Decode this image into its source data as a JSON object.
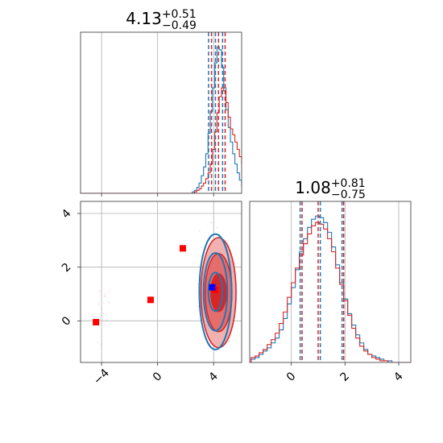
{
  "chart_data": [
    {
      "type": "histogram",
      "panel": "top-left",
      "title_value": "4.13",
      "title_plus": "+0.51",
      "title_minus": "−0.49",
      "xlim": [
        -5.5,
        6.0
      ],
      "x_ticks": [
        -4,
        0,
        4
      ],
      "grid": true,
      "quantile_lines": {
        "blue": [
          3.64,
          4.13,
          4.64
        ],
        "red": [
          3.85,
          4.35,
          4.82
        ]
      },
      "series": [
        {
          "name": "",
          "color": "#1f77b4",
          "bin_start": 2.0,
          "bin_width": 0.16,
          "values": [
            0,
            0,
            0,
            1,
            2,
            4,
            7,
            12,
            18,
            27,
            41,
            56,
            72,
            89,
            100,
            98,
            86,
            72,
            57,
            45,
            35,
            27,
            20,
            14,
            9,
            5,
            3,
            2,
            1,
            0,
            0,
            0,
            0,
            0,
            0,
            0
          ]
        },
        {
          "name": "",
          "color": "#d62728",
          "bin_start": 2.0,
          "bin_width": 0.16,
          "values": [
            0,
            0,
            0,
            0,
            1,
            2,
            3,
            5,
            7,
            10,
            14,
            20,
            30,
            42,
            55,
            66,
            72,
            70,
            62,
            52,
            44,
            40,
            35,
            30,
            25,
            20,
            15,
            10,
            6,
            4,
            2,
            1,
            0,
            0,
            0,
            0
          ]
        }
      ]
    },
    {
      "type": "scatter-contour",
      "panel": "bottom-left",
      "xlim": [
        -5.5,
        6.0
      ],
      "ylim": [
        -1.55,
        4.45
      ],
      "x_ticks": [
        -4,
        0,
        4
      ],
      "y_ticks": [
        0,
        2,
        4
      ],
      "grid": true,
      "markers_red": [
        [
          -4.4,
          -0.05
        ],
        [
          -0.5,
          0.78
        ],
        [
          1.8,
          2.7
        ],
        [
          4.1,
          1.15
        ]
      ],
      "markers_blue": [
        [
          3.9,
          1.25
        ]
      ],
      "contour_blue": {
        "center": [
          4.13,
          1.08
        ],
        "radii_x": [
          0.5,
          0.85,
          1.15
        ],
        "radii_y": [
          0.72,
          1.45,
          2.15
        ]
      },
      "contour_red": {
        "center": [
          4.35,
          1.05
        ],
        "radii_x": [
          0.55,
          0.95,
          1.25
        ],
        "radii_y": [
          0.7,
          1.45,
          2.05
        ]
      }
    },
    {
      "type": "histogram",
      "panel": "bottom-right",
      "title_value": "1.08",
      "title_plus": "+0.81",
      "title_minus": "−0.75",
      "xlim": [
        -1.55,
        4.45
      ],
      "x_ticks": [
        0,
        2,
        4
      ],
      "grid": true,
      "quantile_lines": {
        "blue": [
          0.33,
          1.08,
          1.89
        ],
        "red": [
          0.4,
          1.0,
          1.95
        ]
      },
      "series": [
        {
          "name": "",
          "color": "#1f77b4",
          "bin_start": -1.5,
          "bin_width": 0.15,
          "values": [
            2,
            3,
            5,
            7,
            9,
            12,
            15,
            20,
            27,
            36,
            46,
            57,
            68,
            76,
            83,
            88,
            90,
            89,
            86,
            80,
            71,
            60,
            49,
            39,
            30,
            23,
            17,
            12,
            8,
            5,
            4,
            3,
            2,
            1,
            1,
            0,
            0,
            0,
            0,
            0
          ]
        },
        {
          "name": "",
          "color": "#d62728",
          "bin_start": -1.5,
          "bin_width": 0.15,
          "values": [
            3,
            4,
            6,
            8,
            11,
            14,
            18,
            24,
            31,
            40,
            49,
            58,
            66,
            73,
            79,
            84,
            86,
            85,
            82,
            76,
            68,
            58,
            48,
            38,
            29,
            21,
            15,
            10,
            7,
            5,
            3,
            2,
            1,
            1,
            0,
            0,
            0,
            0,
            0,
            0
          ]
        }
      ]
    }
  ]
}
